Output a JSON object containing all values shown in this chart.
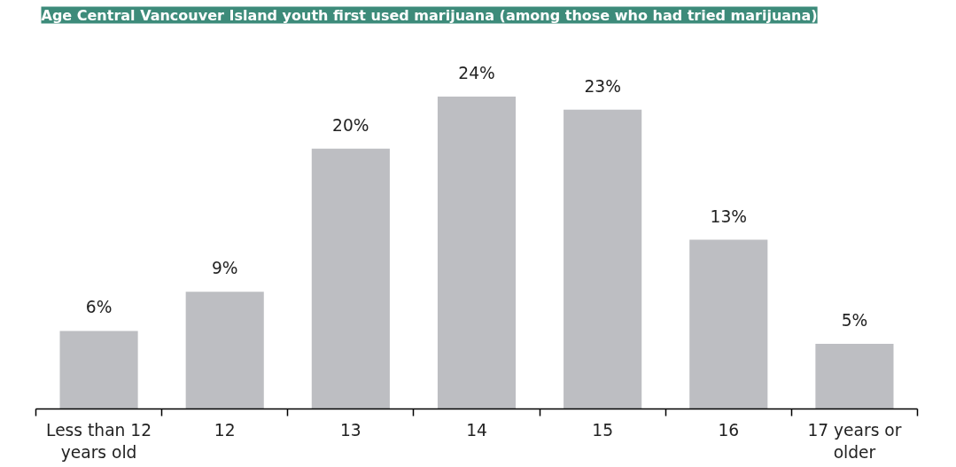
{
  "chart_data": {
    "type": "bar",
    "title": "Age Central Vancouver Island youth first used marijuana (among those who had tried marijuana)",
    "categories": [
      "Less than 12 years old",
      "12",
      "13",
      "14",
      "15",
      "16",
      "17 years or older"
    ],
    "values": [
      6,
      9,
      20,
      24,
      23,
      13,
      5
    ],
    "value_labels": [
      "6%",
      "9%",
      "20%",
      "24%",
      "23%",
      "13%",
      "5%"
    ],
    "color": "#bdbec2"
  }
}
